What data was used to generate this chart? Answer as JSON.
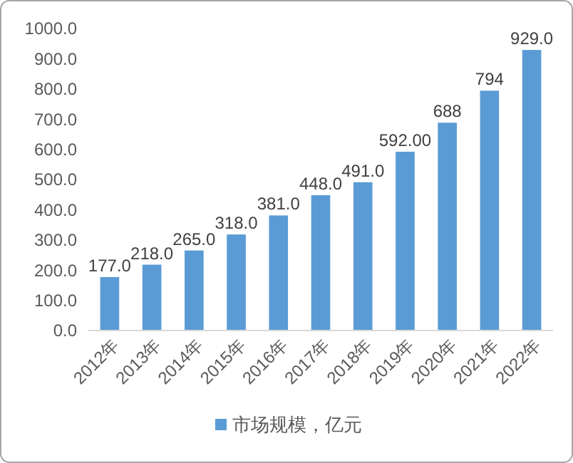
{
  "chart_data": {
    "type": "bar",
    "categories": [
      "2012年",
      "2013年",
      "2014年",
      "2015年",
      "2016年",
      "2017年",
      "2018年",
      "2019年",
      "2020年",
      "2021年",
      "2022年"
    ],
    "series": [
      {
        "name": "市场规模，亿元",
        "color": "#5b9bd5",
        "values": [
          177,
          218,
          265,
          318,
          381,
          448,
          491,
          592,
          688,
          794,
          929
        ],
        "value_labels": [
          "177.0",
          "218.0",
          "265.0",
          "318.0",
          "381.0",
          "448.0",
          "491.0",
          "592.00",
          "688",
          "794",
          "929.0"
        ]
      }
    ],
    "ylim": [
      0,
      1000
    ],
    "yticks": [
      {
        "value": 0,
        "label": "0.0"
      },
      {
        "value": 100,
        "label": "100.0"
      },
      {
        "value": 200,
        "label": "200.0"
      },
      {
        "value": 300,
        "label": "300.0"
      },
      {
        "value": 400,
        "label": "400.0"
      },
      {
        "value": 500,
        "label": "500.0"
      },
      {
        "value": 600,
        "label": "600.0"
      },
      {
        "value": 700,
        "label": "700.0"
      },
      {
        "value": 800,
        "label": "800.0"
      },
      {
        "value": 900,
        "label": "900.0"
      },
      {
        "value": 1000,
        "label": "1000.0"
      }
    ],
    "grid": false,
    "legend": "bottom"
  }
}
